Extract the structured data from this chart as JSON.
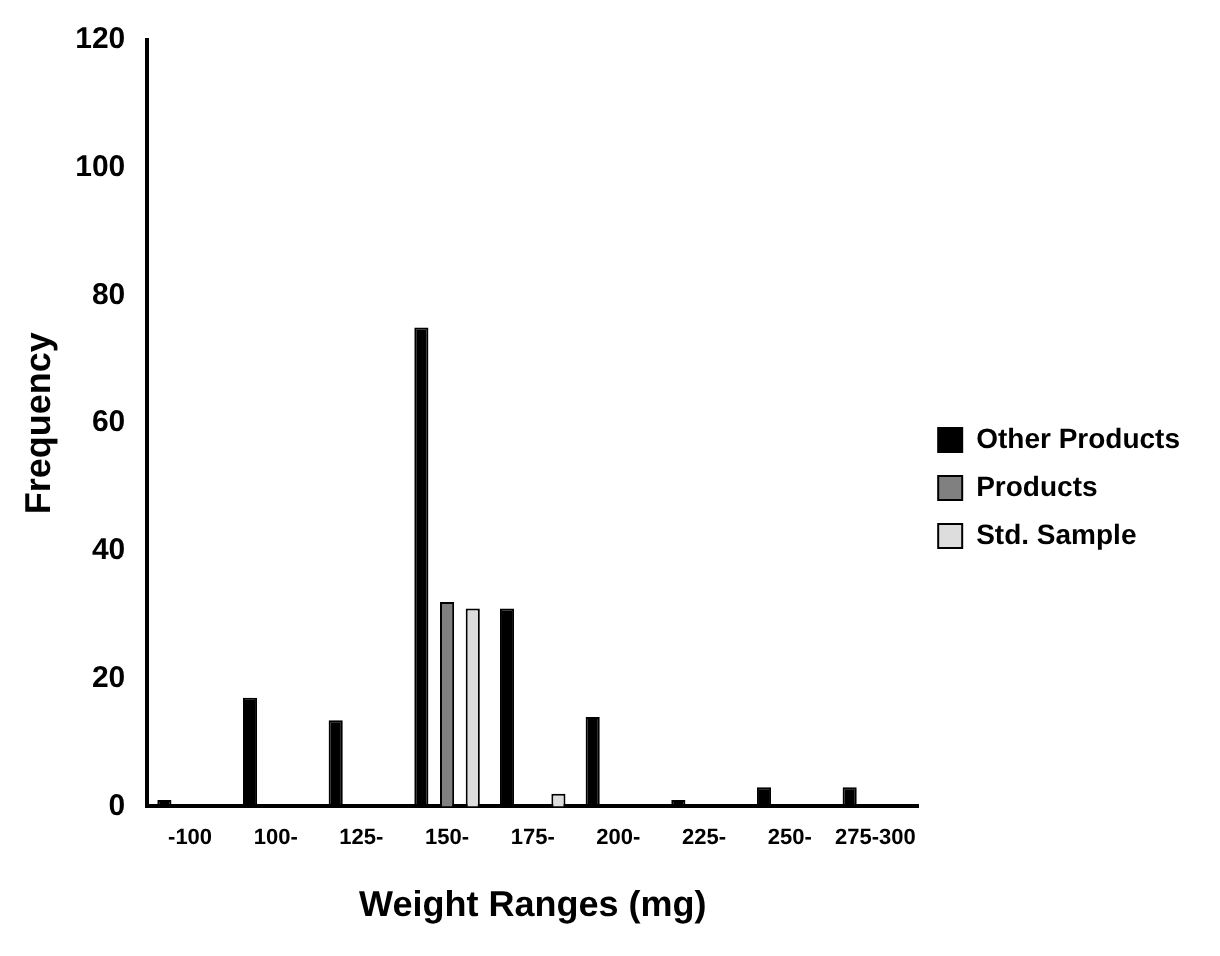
{
  "chart_data": {
    "type": "bar",
    "xlabel": "Weight Ranges (mg)",
    "ylabel": "Frequency",
    "categories": [
      "-100",
      "100-",
      "125-",
      "150-",
      "175-",
      "200-",
      "225-",
      "250-",
      "275-300"
    ],
    "series": [
      {
        "name": "Other Products",
        "color": "#000000",
        "values": [
          1,
          17,
          13.5,
          75,
          31,
          14,
          1,
          3,
          3
        ]
      },
      {
        "name": "Products",
        "color": "#808080",
        "values": [
          0,
          0,
          0,
          32,
          0,
          0,
          0,
          0,
          0
        ]
      },
      {
        "name": "Std. Sample",
        "color": "#dddddd",
        "values": [
          0,
          0,
          0,
          31,
          2,
          0,
          0,
          0,
          0
        ]
      }
    ],
    "ylim": [
      0,
      120
    ],
    "yticks": [
      0,
      20,
      40,
      60,
      80,
      100,
      120
    ],
    "grid": false,
    "legend": "right"
  }
}
